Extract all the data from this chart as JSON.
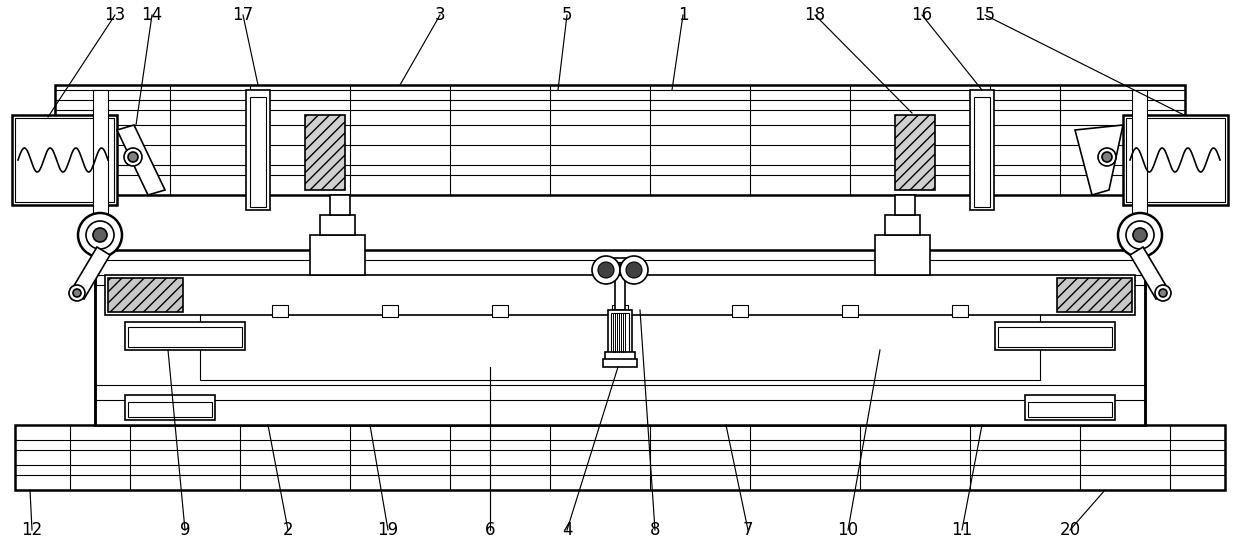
{
  "bg": "#ffffff",
  "lc": "#000000",
  "label_fs": 12,
  "figsize": [
    12.4,
    5.45
  ],
  "dpi": 100
}
